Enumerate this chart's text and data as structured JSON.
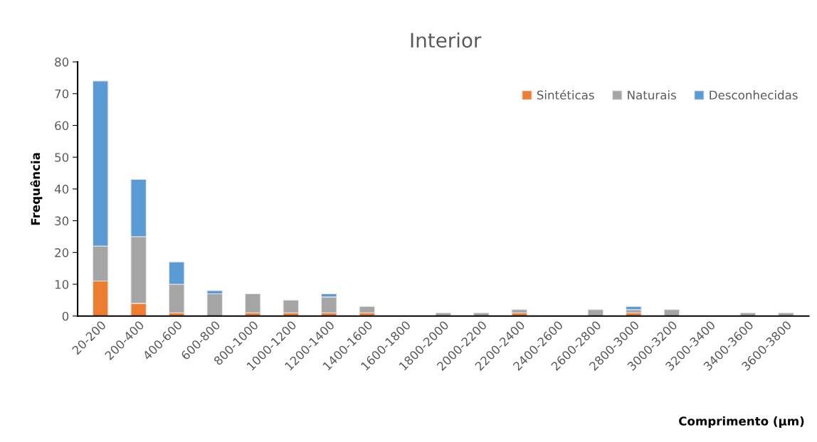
{
  "chart_data": {
    "type": "bar",
    "stacked": true,
    "title": "Interior",
    "xlabel": "Comprimento (µm)",
    "ylabel": "Frequência",
    "categories": [
      "20-200",
      "200-400",
      "400-600",
      "600-800",
      "800-1000",
      "1000-1200",
      "1200-1400",
      "1400-1600",
      "1600-1800",
      "1800-2000",
      "2000-2200",
      "2200-2400",
      "2400-2600",
      "2600-2800",
      "2800-3000",
      "3000-3200",
      "3200-3400",
      "3400-3600",
      "3600-3800"
    ],
    "series": [
      {
        "name": "Sintéticas",
        "color": "#ed7d31",
        "values": [
          11,
          4,
          1,
          0,
          1,
          1,
          1,
          1,
          0,
          0,
          0,
          1,
          0,
          0,
          1,
          0,
          0,
          0,
          0
        ]
      },
      {
        "name": "Naturais",
        "color": "#a5a5a5",
        "values": [
          11,
          21,
          9,
          7,
          6,
          4,
          5,
          2,
          0,
          1,
          1,
          1,
          0,
          2,
          1,
          2,
          0,
          1,
          1
        ]
      },
      {
        "name": "Desconhecidas",
        "color": "#5b9bd5",
        "values": [
          52,
          18,
          7,
          1,
          0,
          0,
          1,
          0,
          0,
          0,
          0,
          0,
          0,
          0,
          1,
          0,
          0,
          0,
          0
        ]
      }
    ],
    "ylim": [
      0,
      80
    ],
    "yticks": [
      0,
      10,
      20,
      30,
      40,
      50,
      60,
      70,
      80
    ],
    "grid": false,
    "legend": "top right"
  }
}
